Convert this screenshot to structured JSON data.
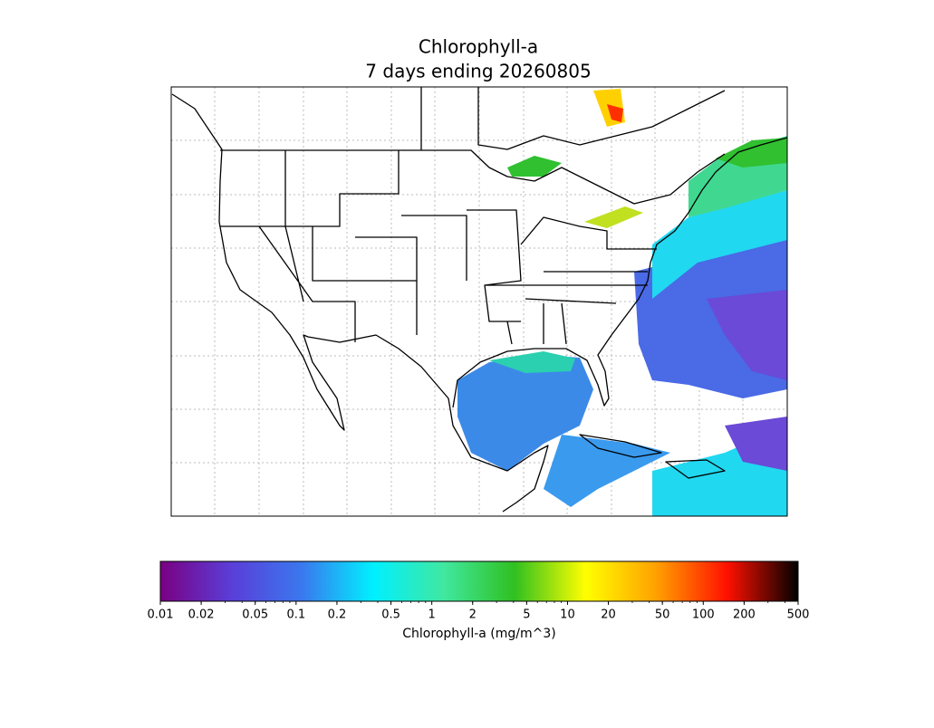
{
  "chart_data": {
    "type": "colorbar-map",
    "title": [
      "Chlorophyll-a",
      "7 days ending 20260805"
    ],
    "colorbar": {
      "label": "Chlorophyll-a (mg/m^3)",
      "scale": "log",
      "lim": [
        0.01,
        500
      ],
      "ticks": [
        0.01,
        0.02,
        0.05,
        0.1,
        0.2,
        0.5,
        1,
        2,
        5,
        10,
        20,
        50,
        100,
        200,
        500
      ],
      "colors": [
        "#7a0082",
        "#5a3ed8",
        "#3a78ee",
        "#00f0ff",
        "#40e8a0",
        "#30c020",
        "#ffff00",
        "#ffa000",
        "#ff1000",
        "#000000"
      ]
    }
  }
}
